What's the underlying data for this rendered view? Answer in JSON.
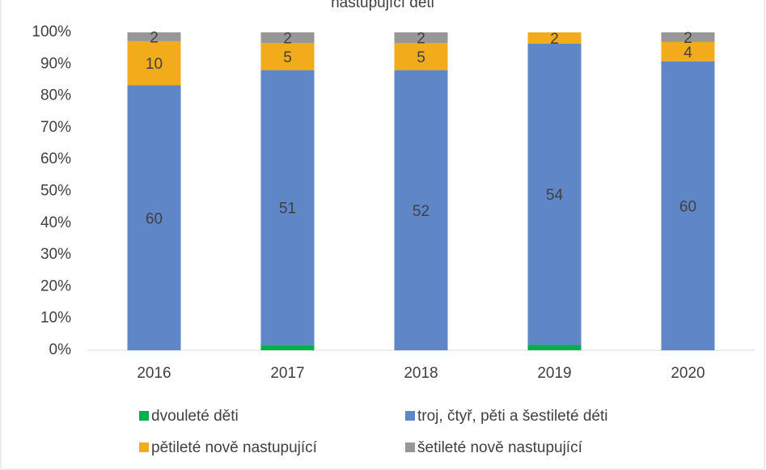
{
  "chart_data": {
    "type": "bar",
    "stacking": "percent",
    "title": "nastupující děti",
    "categories": [
      "2016",
      "2017",
      "2018",
      "2019",
      "2020"
    ],
    "series": [
      {
        "name": "dvouleté děti",
        "color": "#00b050",
        "show_labels": false,
        "values": [
          0,
          1,
          0,
          1,
          0
        ]
      },
      {
        "name": "troj, čtyř, pěti a šestileté déti",
        "color": "#5f86c6",
        "show_labels": true,
        "values": [
          60,
          51,
          52,
          54,
          60
        ]
      },
      {
        "name": "pětileté nově nastupující",
        "color": "#f2ab1b",
        "show_labels": true,
        "values": [
          10,
          5,
          5,
          2,
          4
        ]
      },
      {
        "name": "šetileté nově nastupující",
        "color": "#979797",
        "show_labels": true,
        "values": [
          2,
          2,
          2,
          0,
          2
        ]
      }
    ],
    "ylim": [
      0,
      100
    ],
    "yticks": [
      {
        "value": 0,
        "label": "0%"
      },
      {
        "value": 10,
        "label": "10%"
      },
      {
        "value": 20,
        "label": "20%"
      },
      {
        "value": 30,
        "label": "30%"
      },
      {
        "value": 40,
        "label": "40%"
      },
      {
        "value": 50,
        "label": "50%"
      },
      {
        "value": 60,
        "label": "60%"
      },
      {
        "value": 70,
        "label": "70%"
      },
      {
        "value": 80,
        "label": "80%"
      },
      {
        "value": 90,
        "label": "90%"
      },
      {
        "value": 100,
        "label": "100%"
      }
    ],
    "grid": false,
    "legend": "bottom"
  }
}
